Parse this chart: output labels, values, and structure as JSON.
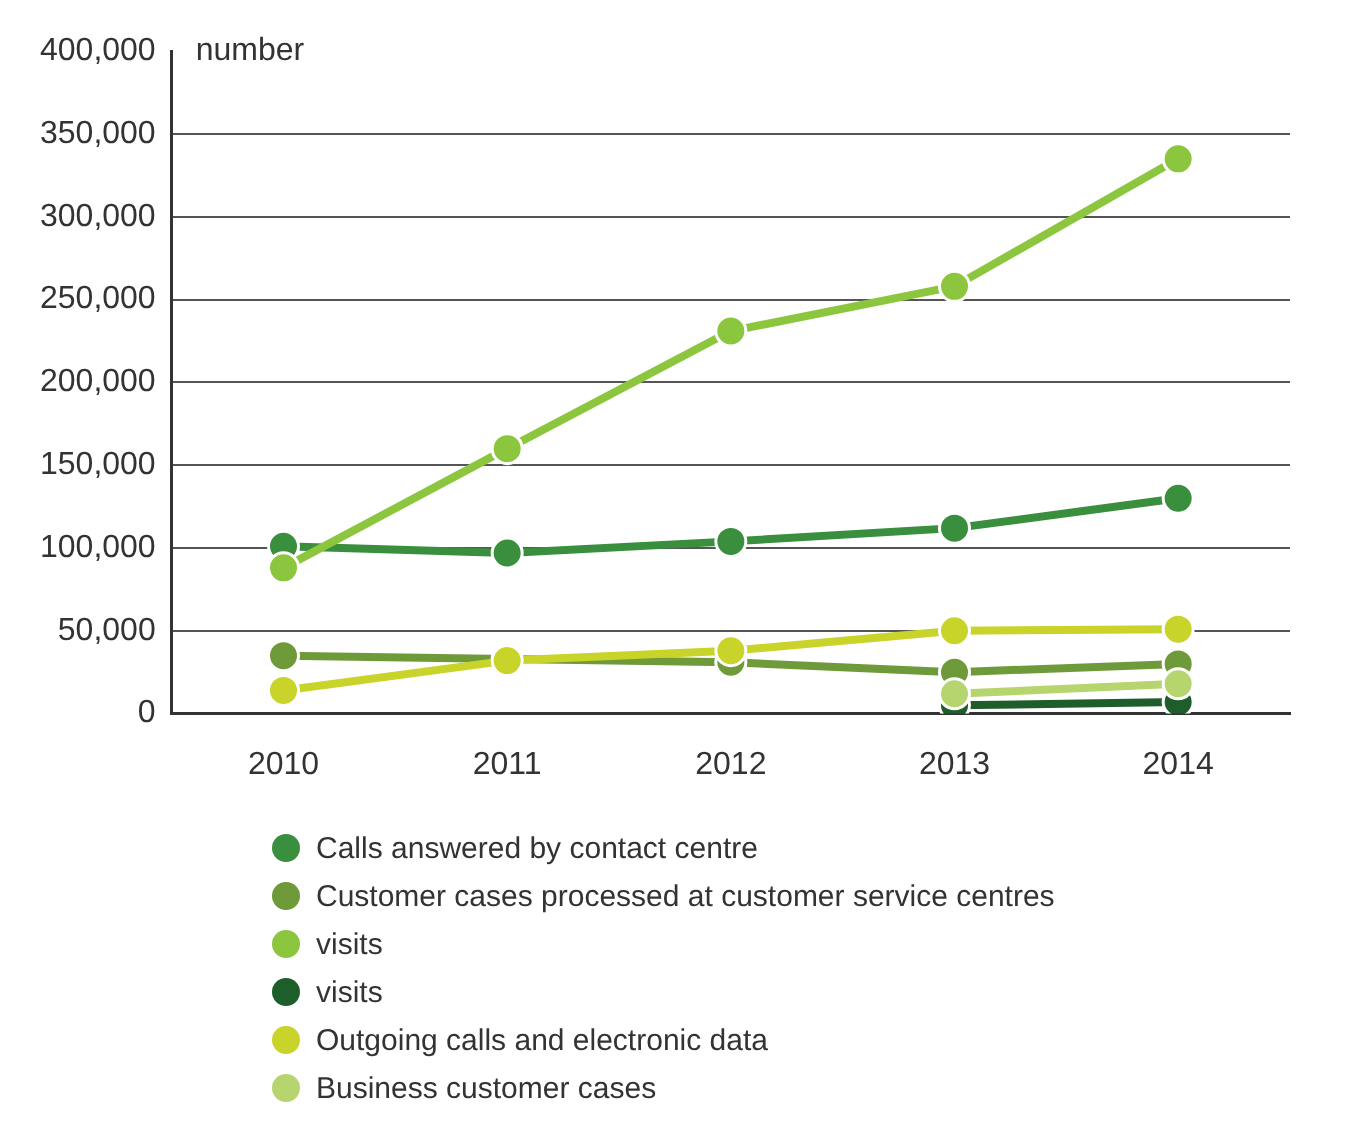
{
  "chart_data": {
    "type": "line",
    "ylabel": "number",
    "categories": [
      "2010",
      "2011",
      "2012",
      "2013",
      "2014"
    ],
    "series": [
      {
        "name": "Calls answered by contact centre",
        "color": "#3a8f3e",
        "values": [
          101000,
          97000,
          104000,
          112000,
          130000
        ]
      },
      {
        "name": "Customer cases processed at customer service centres",
        "color": "#6f9a3a",
        "values": [
          35000,
          33000,
          31000,
          25000,
          30000
        ]
      },
      {
        "name": "visits",
        "color": "#8cc63f",
        "values": [
          88000,
          160000,
          231000,
          258000,
          335000
        ]
      },
      {
        "name": "visits",
        "color": "#1d5e2b",
        "values": [
          null,
          null,
          null,
          5000,
          7000
        ]
      },
      {
        "name": "Outgoing calls and electronic data",
        "color": "#c8d42a",
        "values": [
          14000,
          32000,
          38000,
          50000,
          51000
        ]
      },
      {
        "name": "Business customer cases",
        "color": "#b6d56e",
        "values": [
          null,
          null,
          null,
          12000,
          18000
        ]
      }
    ],
    "ylim": [
      0,
      400000
    ],
    "yticks": [
      0,
      {
        "value": 50000,
        "label": "50,000"
      },
      {
        "value": 100000,
        "label": "100,000"
      },
      {
        "value": 150000,
        "label": "150,000"
      },
      {
        "value": 200000,
        "label": "200,000"
      },
      {
        "value": 250000,
        "label": "250,000"
      },
      {
        "value": 300000,
        "label": "300,000"
      },
      {
        "value": 350000,
        "label": "350,000"
      },
      {
        "value": 400000,
        "label": "400,000"
      }
    ],
    "grid": "y",
    "legend": "bottom",
    "marker": "circle",
    "line_style": "solid"
  }
}
